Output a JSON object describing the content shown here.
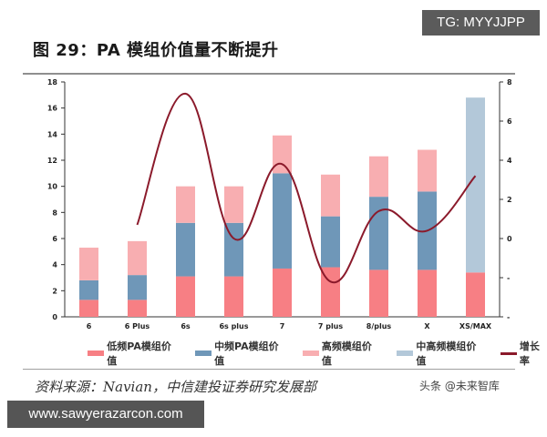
{
  "badges": {
    "top_right": "TG: MYYJJPP",
    "bottom_left": "www.sawyerazarcon.com"
  },
  "figure": {
    "title": "图 29：PA 模组价值量不断提升"
  },
  "source": {
    "text": "资料来源：Navian，中信建投证券研究发展部"
  },
  "watermark": {
    "text": "头条 @未来智库"
  },
  "colors": {
    "low": "#f77f84",
    "mid": "#6f97b8",
    "high": "#f8aeb1",
    "midhigh": "#b3c8d9",
    "line": "#8b1a2b"
  },
  "legend": [
    {
      "label": "低频PA模组价值",
      "color": "#f77f84",
      "type": "bar"
    },
    {
      "label": "中频PA模组价值",
      "color": "#6f97b8",
      "type": "bar"
    },
    {
      "label": "高频模组价值",
      "color": "#f8aeb1",
      "type": "bar"
    },
    {
      "label": "中高频模组价值",
      "color": "#b3c8d9",
      "type": "bar"
    },
    {
      "label": "增长率",
      "color": "#8b1a2b",
      "type": "line"
    }
  ],
  "chart_data": {
    "type": "bar",
    "stacked": true,
    "title": "图 29：PA 模组价值量不断提升",
    "xlabel": "",
    "ylabel": "",
    "categories": [
      "6",
      "6 Plus",
      "6s",
      "6s plus",
      "7",
      "7 plus",
      "8/plus",
      "X",
      "XS/MAX"
    ],
    "series": [
      {
        "name": "低频PA模组价值",
        "values": [
          1.3,
          1.3,
          3.1,
          3.1,
          3.7,
          3.8,
          3.6,
          3.6,
          3.4
        ]
      },
      {
        "name": "中频PA模组价值",
        "values": [
          1.5,
          1.9,
          4.1,
          4.1,
          7.3,
          3.9,
          5.6,
          6.0,
          0
        ]
      },
      {
        "name": "高频模组价值",
        "values": [
          2.5,
          2.6,
          2.8,
          2.8,
          2.9,
          3.2,
          3.1,
          3.2,
          0
        ]
      },
      {
        "name": "中高频模组价值",
        "values": [
          0,
          0,
          0,
          0,
          0,
          0,
          0,
          0,
          13.4
        ]
      },
      {
        "name": "增长率",
        "type": "line",
        "axis": "right",
        "values": [
          null,
          7,
          74,
          0,
          38,
          -22,
          14,
          4,
          32
        ]
      }
    ],
    "ylim": [
      0,
      18
    ],
    "yticks": [
      0,
      2,
      4,
      6,
      8,
      10,
      12,
      14,
      16,
      18
    ],
    "y2lim": [
      -40,
      80
    ],
    "y2ticks_visible": [
      "-",
      "-",
      "0",
      "2",
      "4",
      "6",
      "8"
    ],
    "grid": false,
    "legend_position": "bottom"
  }
}
